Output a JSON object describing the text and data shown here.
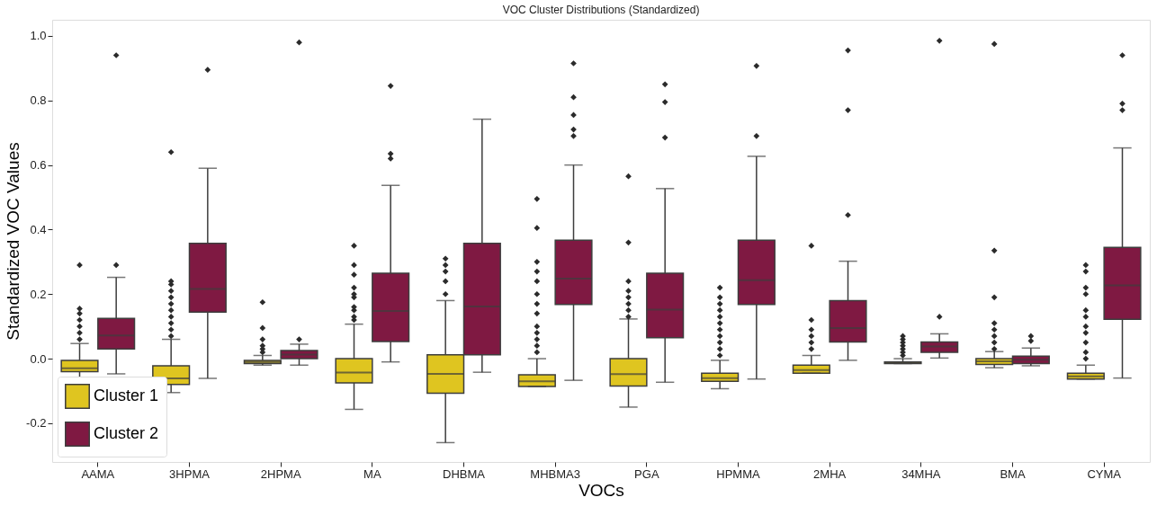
{
  "chart_data": {
    "type": "box",
    "title": "VOC Cluster Distributions (Standardized)",
    "xlabel": "VOCs",
    "ylabel": "Standardized VOC Values",
    "categories": [
      "AAMA",
      "3HPMA",
      "2HPMA",
      "MA",
      "DHBMA",
      "MHBMA3",
      "PGA",
      "HPMMA",
      "2MHA",
      "34MHA",
      "BMA",
      "CYMA"
    ],
    "ylim": [
      -0.32,
      1.05
    ],
    "yticks": [
      {
        "value": -0.2,
        "label": "-0.2"
      },
      {
        "value": 0,
        "label": "0.0"
      },
      {
        "value": 0.2,
        "label": "0.2"
      },
      {
        "value": 0.4,
        "label": "0.4"
      },
      {
        "value": 0.6,
        "label": "0.6"
      },
      {
        "value": 0.8,
        "label": "0.8"
      },
      {
        "value": 1.0,
        "label": "1.0"
      }
    ],
    "grid": false,
    "legend": "bottom left",
    "marker": "diamond",
    "series": [
      {
        "name": "Cluster 1",
        "color": "#dfc520",
        "boxes": [
          {
            "low": -0.065,
            "q1": -0.04,
            "median": -0.03,
            "q3": -0.005,
            "high": 0.047,
            "outliers": [
              0.06,
              0.08,
              0.1,
              0.12,
              0.14,
              0.155,
              0.29
            ]
          },
          {
            "low": -0.105,
            "q1": -0.08,
            "median": -0.061,
            "q3": -0.022,
            "high": 0.06,
            "outliers": [
              0.07,
              0.09,
              0.11,
              0.13,
              0.15,
              0.17,
              0.19,
              0.21,
              0.23,
              0.24,
              0.64
            ]
          },
          {
            "low": -0.02,
            "q1": -0.015,
            "median": -0.01,
            "q3": -0.005,
            "high": 0.01,
            "outliers": [
              0.02,
              0.03,
              0.04,
              0.06,
              0.095,
              0.175
            ]
          },
          {
            "low": -0.157,
            "q1": -0.075,
            "median": -0.043,
            "q3": 0.0,
            "high": 0.107,
            "outliers": [
              0.12,
              0.13,
              0.15,
              0.16,
              0.19,
              0.2,
              0.22,
              0.26,
              0.29,
              0.35
            ]
          },
          {
            "low": -0.26,
            "q1": -0.107,
            "median": -0.047,
            "q3": 0.012,
            "high": 0.18,
            "outliers": [
              0.2,
              0.24,
              0.27,
              0.29,
              0.31
            ]
          },
          {
            "low": -0.086,
            "q1": -0.086,
            "median": -0.07,
            "q3": -0.05,
            "high": 0.0,
            "outliers": [
              0.02,
              0.04,
              0.06,
              0.08,
              0.1,
              0.14,
              0.17,
              0.2,
              0.24,
              0.27,
              0.3,
              0.405,
              0.495
            ]
          },
          {
            "low": -0.15,
            "q1": -0.085,
            "median": -0.048,
            "q3": 0.0,
            "high": 0.123,
            "outliers": [
              0.13,
              0.15,
              0.17,
              0.19,
              0.21,
              0.24,
              0.36,
              0.565
            ]
          },
          {
            "low": -0.093,
            "q1": -0.07,
            "median": -0.06,
            "q3": -0.045,
            "high": -0.005,
            "outliers": [
              0.01,
              0.03,
              0.05,
              0.07,
              0.09,
              0.11,
              0.13,
              0.15,
              0.17,
              0.19,
              0.22
            ]
          },
          {
            "low": -0.045,
            "q1": -0.045,
            "median": -0.035,
            "q3": -0.02,
            "high": 0.01,
            "outliers": [
              0.03,
              0.05,
              0.07,
              0.09,
              0.12,
              0.35
            ]
          },
          {
            "low": -0.015,
            "q1": -0.015,
            "median": -0.012,
            "q3": -0.01,
            "high": 0.0,
            "outliers": [
              0.01,
              0.02,
              0.03,
              0.04,
              0.05,
              0.06,
              0.07
            ]
          },
          {
            "low": -0.028,
            "q1": -0.018,
            "median": -0.008,
            "q3": 0.0,
            "high": 0.022,
            "outliers": [
              0.03,
              0.05,
              0.07,
              0.09,
              0.11,
              0.19,
              0.335,
              0.975
            ]
          },
          {
            "low": -0.063,
            "q1": -0.063,
            "median": -0.055,
            "q3": -0.045,
            "high": -0.02,
            "outliers": [
              0.0,
              0.02,
              0.05,
              0.08,
              0.1,
              0.13,
              0.15,
              0.2,
              0.22,
              0.27,
              0.29
            ]
          }
        ]
      },
      {
        "name": "Cluster 2",
        "color": "#7f1942",
        "boxes": [
          {
            "low": -0.047,
            "q1": 0.03,
            "median": 0.072,
            "q3": 0.125,
            "high": 0.252,
            "outliers": [
              0.29,
              0.94
            ]
          },
          {
            "low": -0.061,
            "q1": 0.144,
            "median": 0.216,
            "q3": 0.357,
            "high": 0.59,
            "outliers": [
              0.895
            ]
          },
          {
            "low": -0.02,
            "q1": 0.0,
            "median": 0.013,
            "q3": 0.025,
            "high": 0.045,
            "outliers": [
              0.06,
              0.98
            ]
          },
          {
            "low": -0.01,
            "q1": 0.053,
            "median": 0.148,
            "q3": 0.265,
            "high": 0.537,
            "outliers": [
              0.62,
              0.635,
              0.845
            ]
          },
          {
            "low": -0.042,
            "q1": 0.012,
            "median": 0.162,
            "q3": 0.357,
            "high": 0.742
          },
          {
            "low": -0.067,
            "q1": 0.168,
            "median": 0.248,
            "q3": 0.367,
            "high": 0.6,
            "outliers": [
              0.69,
              0.71,
              0.755,
              0.81,
              0.915
            ]
          },
          {
            "low": -0.073,
            "q1": 0.065,
            "median": 0.152,
            "q3": 0.265,
            "high": 0.527,
            "outliers": [
              0.685,
              0.795,
              0.85
            ]
          },
          {
            "low": -0.063,
            "q1": 0.168,
            "median": 0.243,
            "q3": 0.367,
            "high": 0.627,
            "outliers": [
              0.69,
              0.907
            ]
          },
          {
            "low": -0.005,
            "q1": 0.052,
            "median": 0.095,
            "q3": 0.18,
            "high": 0.302,
            "outliers": [
              0.445,
              0.77,
              0.955
            ]
          },
          {
            "low": 0.002,
            "q1": 0.02,
            "median": 0.038,
            "q3": 0.052,
            "high": 0.077,
            "outliers": [
              0.13,
              0.985
            ]
          },
          {
            "low": -0.022,
            "q1": -0.015,
            "median": -0.003,
            "q3": 0.008,
            "high": 0.033,
            "outliers": [
              0.055,
              0.07
            ]
          },
          {
            "low": -0.06,
            "q1": 0.122,
            "median": 0.227,
            "q3": 0.345,
            "high": 0.653,
            "outliers": [
              0.77,
              0.79,
              0.94
            ]
          }
        ]
      }
    ]
  }
}
